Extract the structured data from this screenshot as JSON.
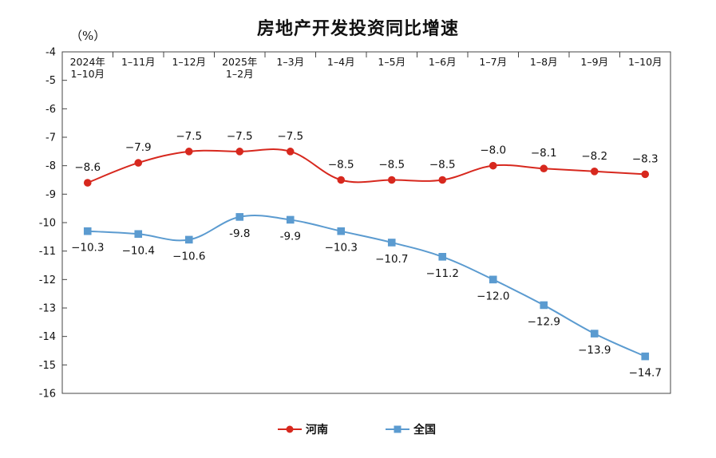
{
  "chart_data": {
    "type": "line",
    "title": "房地产开发投资同比增速",
    "unit": "（%）",
    "categories": [
      [
        "2024年",
        "1–10月"
      ],
      [
        "1–11月"
      ],
      [
        "1–12月"
      ],
      [
        "2025年",
        "1–2月"
      ],
      [
        "1–3月"
      ],
      [
        "1–4月"
      ],
      [
        "1–5月"
      ],
      [
        "1–6月"
      ],
      [
        "1–7月"
      ],
      [
        "1–8月"
      ],
      [
        "1–9月"
      ],
      [
        "1–10月"
      ]
    ],
    "series": [
      {
        "name": "河南",
        "color": "#d7281e",
        "marker": "circle",
        "values": [
          -8.6,
          -7.9,
          -7.5,
          -7.5,
          -7.5,
          -8.5,
          -8.5,
          -8.5,
          -8.0,
          -8.1,
          -8.2,
          -8.3
        ],
        "labels": [
          "−8.6",
          "−7.9",
          "−7.5",
          "−7.5",
          "−7.5",
          "−8.5",
          "−8.5",
          "−8.5",
          "−8.0",
          "−8.1",
          "−8.2",
          "−8.3"
        ]
      },
      {
        "name": "全国",
        "color": "#5b9bd0",
        "marker": "square",
        "values": [
          -10.3,
          -10.4,
          -10.6,
          -9.8,
          -9.9,
          -10.3,
          -10.7,
          -11.2,
          -12.0,
          -12.9,
          -13.9,
          -14.7
        ],
        "labels": [
          "−10.3",
          "−10.4",
          "−10.6",
          "-9.8",
          "-9.9",
          "−10.3",
          "−10.7",
          "−11.2",
          "−12.0",
          "−12.9",
          "−13.9",
          "−14.7"
        ]
      }
    ],
    "ylim": [
      -16,
      -4
    ],
    "yticks": [
      -4,
      -5,
      -6,
      -7,
      -8,
      -9,
      -10,
      -11,
      -12,
      -13,
      -14,
      -15,
      -16
    ],
    "ytick_labels": [
      "-4",
      "-5",
      "-6",
      "-7",
      "-8",
      "-9",
      "-10",
      "-11",
      "-12",
      "-13",
      "-14",
      "-15",
      "-16"
    ],
    "grid": false,
    "legend": "bottom-center"
  }
}
